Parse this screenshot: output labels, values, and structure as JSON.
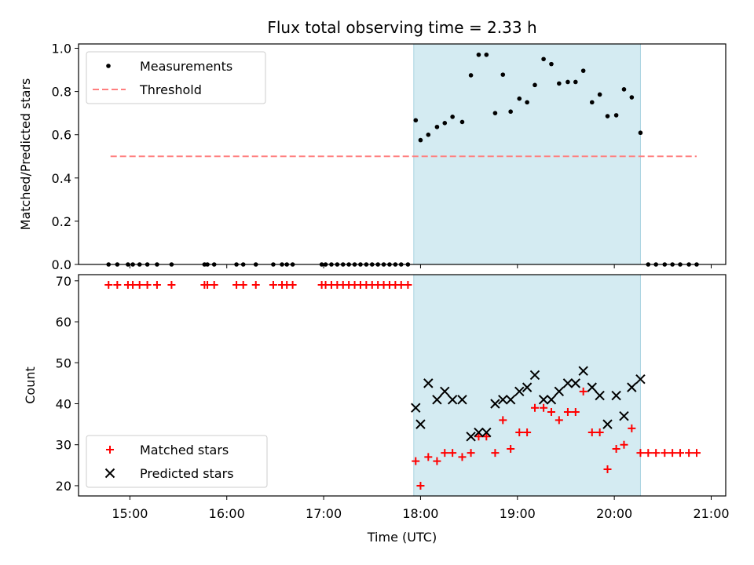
{
  "chart_data": {
    "title": "Flux total observing time = 2.33 h",
    "xlabel": "Time (UTC)",
    "xlim_hours": [
      14.47,
      21.15
    ],
    "x_ticks": [
      "15:00",
      "16:00",
      "17:00",
      "18:00",
      "19:00",
      "20:00",
      "21:00"
    ],
    "x_tick_values_hours": [
      15,
      16,
      17,
      18,
      19,
      20,
      21
    ],
    "observing_window_hours": [
      17.93,
      20.27
    ],
    "window_color": "#d4ebf2",
    "panels": [
      {
        "type": "scatter",
        "ylabel": "Matched/Predicted stars",
        "ylim": [
          0,
          1.02
        ],
        "y_ticks": [
          "0.0",
          "0.2",
          "0.4",
          "0.6",
          "0.8",
          "1.0"
        ],
        "y_tick_values": [
          0,
          0.2,
          0.4,
          0.6,
          0.8,
          1.0
        ],
        "legend": {
          "position": "top-left",
          "entries": [
            "Measurements",
            "Threshold"
          ]
        },
        "threshold": {
          "name": "Threshold",
          "y": 0.5,
          "x_range_hours": [
            14.8,
            20.85
          ],
          "color": "#ff7f7f",
          "style": "dashed"
        },
        "series": [
          {
            "name": "Measurements",
            "marker": "dot",
            "color": "#000000",
            "x": [
              14.78,
              14.87,
              14.98,
              15.03,
              15.1,
              15.18,
              15.28,
              15.43,
              15.77,
              15.8,
              15.87,
              16.1,
              16.17,
              16.3,
              16.48,
              16.57,
              16.62,
              16.68,
              16.98,
              17.02,
              17.08,
              17.14,
              17.2,
              17.26,
              17.32,
              17.38,
              17.44,
              17.5,
              17.56,
              17.62,
              17.68,
              17.74,
              17.8,
              17.87,
              17.95,
              18.0,
              18.08,
              18.17,
              18.25,
              18.33,
              18.43,
              18.52,
              18.6,
              18.68,
              18.77,
              18.85,
              18.93,
              19.02,
              19.1,
              19.18,
              19.27,
              19.35,
              19.43,
              19.52,
              19.6,
              19.68,
              19.77,
              19.85,
              19.93,
              20.02,
              20.1,
              20.18,
              20.27,
              20.35,
              20.43,
              20.52,
              20.6,
              20.68,
              20.77,
              20.85
            ],
            "y": [
              0,
              0,
              0,
              0,
              0,
              0,
              0,
              0,
              0,
              0,
              0,
              0,
              0,
              0,
              0,
              0,
              0,
              0,
              0,
              0,
              0,
              0,
              0,
              0,
              0,
              0,
              0,
              0,
              0,
              0,
              0,
              0,
              0,
              0,
              0.667,
              0.575,
              0.6,
              0.636,
              0.654,
              0.683,
              0.659,
              0.875,
              0.97,
              0.97,
              0.7,
              0.878,
              0.707,
              0.767,
              0.75,
              0.83,
              0.95,
              0.927,
              0.837,
              0.844,
              0.844,
              0.896,
              0.75,
              0.786,
              0.686,
              0.69,
              0.81,
              0.773,
              0.609,
              0,
              0,
              0,
              0,
              0,
              0,
              0
            ]
          }
        ]
      },
      {
        "type": "scatter",
        "ylabel": "Count",
        "ylim": [
          17.5,
          71.5
        ],
        "y_ticks": [
          "20",
          "30",
          "40",
          "50",
          "60",
          "70"
        ],
        "y_tick_values": [
          20,
          30,
          40,
          50,
          60,
          70
        ],
        "legend": {
          "position": "bottom-left",
          "entries": [
            "Matched stars",
            "Predicted stars"
          ]
        },
        "series": [
          {
            "name": "Matched stars",
            "marker": "plus",
            "color": "#ff0000",
            "x": [
              14.78,
              14.87,
              14.98,
              15.03,
              15.1,
              15.18,
              15.28,
              15.43,
              15.77,
              15.8,
              15.87,
              16.1,
              16.17,
              16.3,
              16.48,
              16.57,
              16.62,
              16.68,
              16.98,
              17.02,
              17.08,
              17.14,
              17.2,
              17.26,
              17.32,
              17.38,
              17.44,
              17.5,
              17.56,
              17.62,
              17.68,
              17.74,
              17.8,
              17.87,
              17.95,
              18.0,
              18.08,
              18.17,
              18.25,
              18.33,
              18.43,
              18.52,
              18.6,
              18.68,
              18.77,
              18.85,
              18.93,
              19.02,
              19.1,
              19.18,
              19.27,
              19.35,
              19.43,
              19.52,
              19.6,
              19.68,
              19.77,
              19.85,
              19.93,
              20.02,
              20.1,
              20.18,
              20.27,
              20.35,
              20.43,
              20.52,
              20.6,
              20.68,
              20.77,
              20.85
            ],
            "y": [
              69,
              69,
              69,
              69,
              69,
              69,
              69,
              69,
              69,
              69,
              69,
              69,
              69,
              69,
              69,
              69,
              69,
              69,
              69,
              69,
              69,
              69,
              69,
              69,
              69,
              69,
              69,
              69,
              69,
              69,
              69,
              69,
              69,
              69,
              26,
              20,
              27,
              26,
              28,
              28,
              27,
              28,
              32,
              32,
              28,
              36,
              29,
              33,
              33,
              39,
              39,
              38,
              36,
              38,
              38,
              43,
              33,
              33,
              24,
              29,
              30,
              34,
              28,
              28,
              28,
              28,
              28,
              28,
              28,
              28
            ]
          },
          {
            "name": "Predicted stars",
            "marker": "x",
            "color": "#000000",
            "x": [
              17.95,
              18.0,
              18.08,
              18.17,
              18.25,
              18.33,
              18.43,
              18.52,
              18.6,
              18.68,
              18.77,
              18.85,
              18.93,
              19.02,
              19.1,
              19.18,
              19.27,
              19.35,
              19.43,
              19.52,
              19.6,
              19.68,
              19.77,
              19.85,
              19.93,
              20.02,
              20.1,
              20.18,
              20.27
            ],
            "y": [
              39,
              35,
              45,
              41,
              43,
              41,
              41,
              32,
              33,
              33,
              40,
              41,
              41,
              43,
              44,
              47,
              41,
              41,
              43,
              45,
              45,
              48,
              44,
              42,
              35,
              42,
              37,
              44,
              46
            ]
          }
        ]
      }
    ]
  }
}
